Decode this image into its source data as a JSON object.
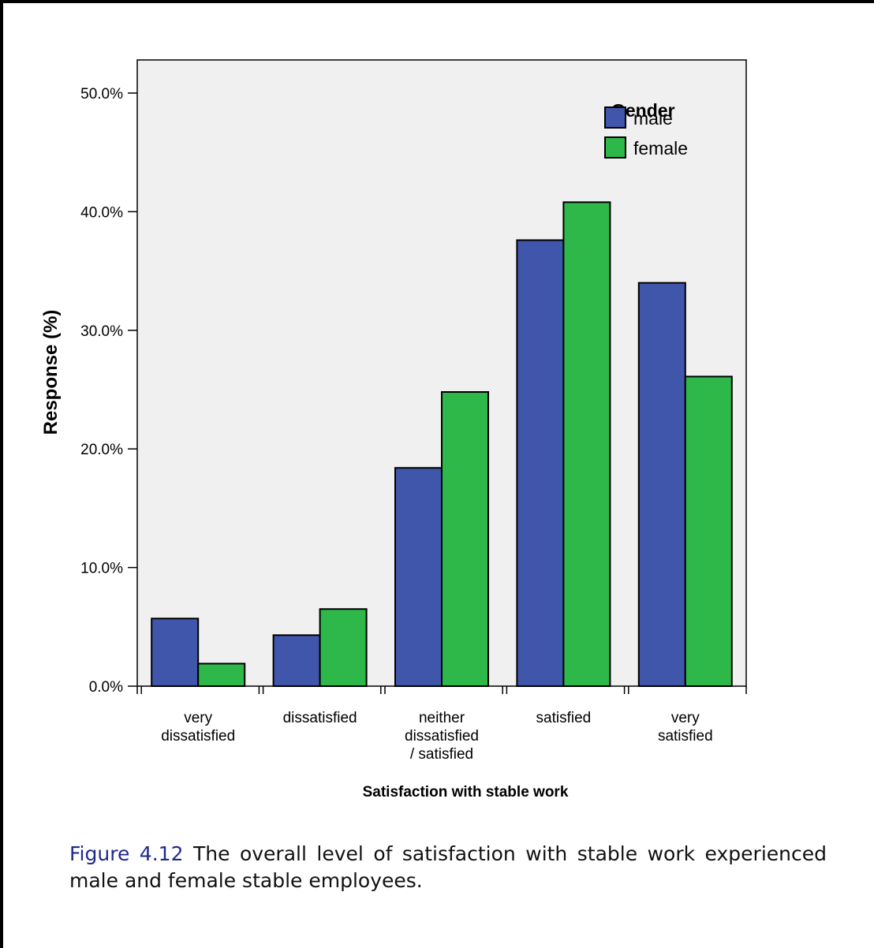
{
  "chart_data": {
    "type": "bar",
    "title": "",
    "xlabel": "Satisfaction with stable work",
    "ylabel": "Response (%)",
    "ylim": [
      0,
      50
    ],
    "yticks": [
      "0.0%",
      "10.0%",
      "20.0%",
      "30.0%",
      "40.0%",
      "50.0%"
    ],
    "categories": [
      [
        "very",
        "dissatisfied"
      ],
      [
        "dissatisfied"
      ],
      [
        "neither",
        "dissatisfied",
        "/ satisfied"
      ],
      [
        "satisfied"
      ],
      [
        "very",
        "satisfied"
      ]
    ],
    "legend": {
      "title": "Gender",
      "position": "top-right"
    },
    "series": [
      {
        "name": "male",
        "color": "#3f56ab",
        "values": [
          5.7,
          4.3,
          18.4,
          37.6,
          34.0
        ]
      },
      {
        "name": "female",
        "color": "#2eb84a",
        "values": [
          1.9,
          6.5,
          24.8,
          40.8,
          26.1
        ]
      }
    ],
    "grid": false,
    "background": "#f0f0f0"
  },
  "caption": {
    "label": "Figure 4.12",
    "text": "The overall level of satisfaction with stable work experienced male and female stable employees."
  }
}
